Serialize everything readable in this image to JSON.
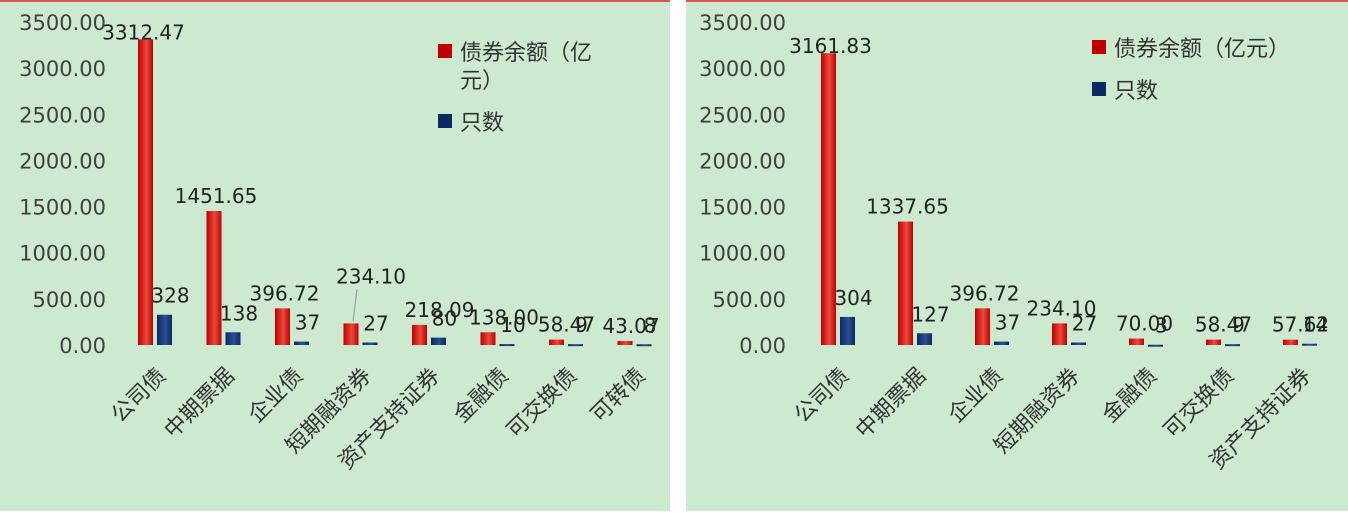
{
  "colors": {
    "background": "#cde9cf",
    "series_amount": "#c00000",
    "series_amount_light": "#e84a3c",
    "series_count": "#0b2a63",
    "series_count_light": "#2a4e91"
  },
  "chart_data": [
    {
      "type": "bar",
      "categories": [
        "公司债",
        "中期票据",
        "企业债",
        "短期融资券",
        "资产支持证券",
        "金融债",
        "可交换债",
        "可转债"
      ],
      "series": [
        {
          "name": "债券余额（亿元）",
          "values": [
            3312.47,
            1451.65,
            396.72,
            234.1,
            218.09,
            138.0,
            58.47,
            43.07
          ],
          "labels": [
            "3312.47",
            "1451.65",
            "396.72",
            "234.10",
            "218.09",
            "138.00",
            "58.47",
            "43.07"
          ]
        },
        {
          "name": "只数",
          "values": [
            328,
            138,
            37,
            27,
            80,
            10,
            9,
            8
          ],
          "labels": [
            "328",
            "138",
            "37",
            "27",
            "80",
            "10",
            "9",
            "8"
          ]
        }
      ],
      "yticks": [
        "0.00",
        "500.00",
        "1000.00",
        "1500.00",
        "2000.00",
        "2500.00",
        "3000.00",
        "3500.00"
      ],
      "ylim": [
        0,
        3500
      ],
      "legend": "top-right",
      "legend_lines": [
        [
          "债券余额（亿",
          "元）"
        ],
        [
          "只数"
        ]
      ]
    },
    {
      "type": "bar",
      "categories": [
        "公司债",
        "中期票据",
        "企业债",
        "短期融资券",
        "金融债",
        "可交换债",
        "资产支持证券"
      ],
      "series": [
        {
          "name": "债券余额（亿元）",
          "values": [
            3161.83,
            1337.65,
            396.72,
            234.1,
            70.0,
            58.47,
            57.62
          ],
          "labels": [
            "3161.83",
            "1337.65",
            "396.72",
            "234.10",
            "70.00",
            "58.47",
            "57.62"
          ]
        },
        {
          "name": "只数",
          "values": [
            304,
            127,
            37,
            27,
            3,
            9,
            14
          ],
          "labels": [
            "304",
            "127",
            "37",
            "27",
            "3",
            "9",
            "14"
          ]
        }
      ],
      "yticks": [
        "0.00",
        "500.00",
        "1000.00",
        "1500.00",
        "2000.00",
        "2500.00",
        "3000.00",
        "3500.00"
      ],
      "ylim": [
        0,
        3500
      ],
      "legend": "top-right",
      "legend_lines": [
        [
          "债券余额（亿元）"
        ],
        [
          "只数"
        ]
      ]
    }
  ]
}
